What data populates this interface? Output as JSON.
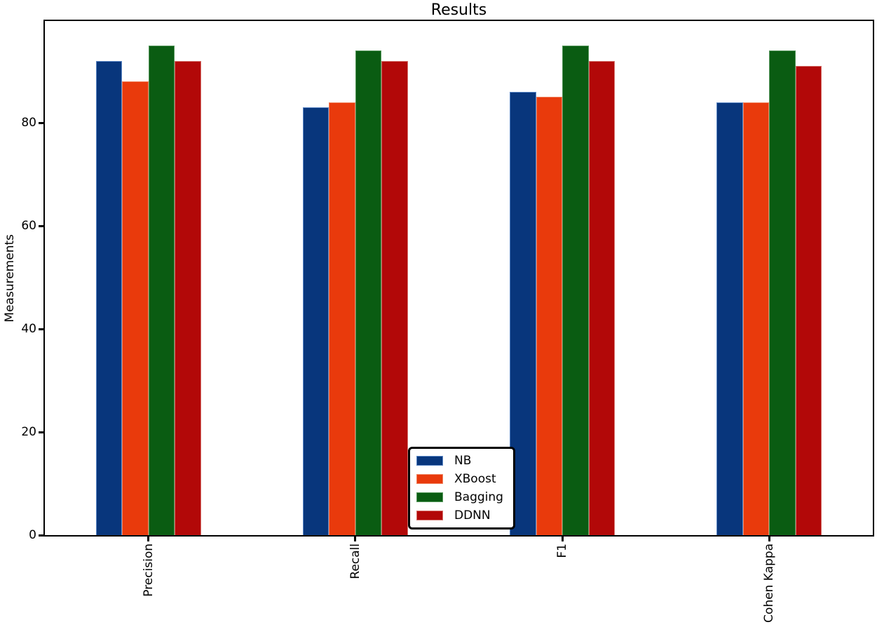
{
  "window_title": "Results",
  "chart_data": {
    "type": "bar",
    "title": "Results",
    "xlabel": "",
    "ylabel": "Measurements",
    "categories": [
      "Precision",
      "Recall",
      "F1",
      "Cohen Kappa"
    ],
    "series": [
      {
        "name": "NB",
        "color": "#08367c",
        "edge_color": "#5b87c5",
        "values": [
          92,
          83,
          86,
          84
        ]
      },
      {
        "name": "XBoost",
        "color": "#e93a0c",
        "edge_color": "#f0825e",
        "values": [
          88,
          84,
          85,
          84
        ]
      },
      {
        "name": "Bagging",
        "color": "#0a5c12",
        "edge_color": "#55975b",
        "values": [
          95,
          94,
          95,
          94
        ]
      },
      {
        "name": "DDNN",
        "color": "#b20808",
        "edge_color": "#d4706a",
        "values": [
          92,
          92,
          92,
          91
        ]
      }
    ],
    "ylim": [
      0,
      99.75
    ],
    "yticks": [
      0,
      20,
      40,
      60,
      80
    ],
    "grid": false,
    "legend_position": "lower-center-inside-axes",
    "x_tick_label_rotation": 90,
    "note_clipping": "First letter of 'Cohen Kappa' x tick label is clipped by the figure bottom edge",
    "axis_color": "#000000",
    "background_color": "#ffffff"
  }
}
